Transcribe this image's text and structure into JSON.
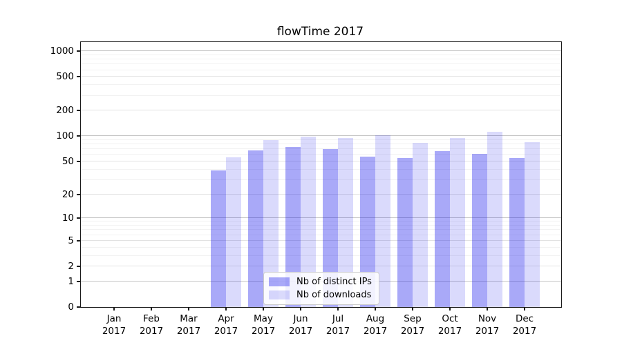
{
  "chart_data": {
    "type": "bar",
    "title": "flowTime 2017",
    "categories": [
      "Jan 2017",
      "Feb 2017",
      "Mar 2017",
      "Apr 2017",
      "May 2017",
      "Jun 2017",
      "Jul 2017",
      "Aug 2017",
      "Sep 2017",
      "Oct 2017",
      "Nov 2017",
      "Dec 2017"
    ],
    "x_tick_months": [
      "Jan",
      "Feb",
      "Mar",
      "Apr",
      "May",
      "Jun",
      "Jul",
      "Aug",
      "Sep",
      "Oct",
      "Nov",
      "Dec"
    ],
    "x_tick_year": "2017",
    "series": [
      {
        "name": "Nb of distinct IPs",
        "color": "rgba(10,10,235,0.35)",
        "color_flat": "#a9a9f6",
        "values": [
          null,
          null,
          null,
          39,
          68,
          74,
          71,
          57,
          55,
          66,
          62,
          55
        ]
      },
      {
        "name": "Nb of downloads",
        "color": "rgba(10,10,235,0.15)",
        "color_flat": "#dbdbfa",
        "values": [
          null,
          null,
          null,
          56,
          90,
          99,
          95,
          103,
          83,
          95,
          112,
          85
        ]
      }
    ],
    "y_ticks": [
      0,
      1,
      2,
      5,
      10,
      20,
      50,
      100,
      200,
      500,
      1000
    ],
    "y_scale": "log10(value+1)",
    "ylim": [
      0,
      1283
    ],
    "grid": "horizontal",
    "legend_position": "inside-bottom-center",
    "colors": {
      "grid_major": "#c6c6c6",
      "grid_minor": "#e2e2e2",
      "grid_faint": "#f2f2f2",
      "axis": "#1a1a1a",
      "background": "#ffffff"
    }
  }
}
